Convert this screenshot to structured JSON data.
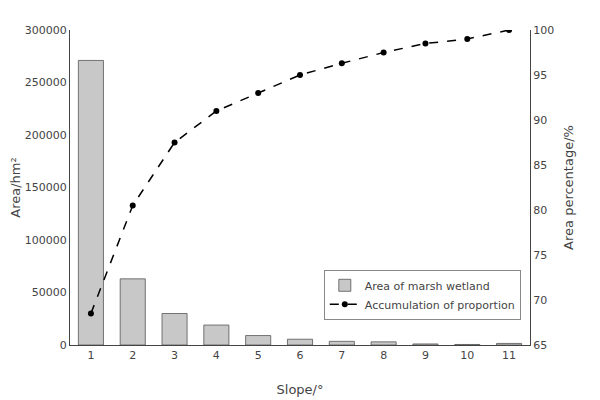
{
  "chart_data": {
    "type": "bar",
    "x": [
      1,
      2,
      3,
      4,
      5,
      6,
      7,
      8,
      9,
      10,
      11
    ],
    "series": [
      {
        "name": "Area of marsh wetland",
        "type": "bar",
        "color": "#c8c8c8",
        "values": [
          271000,
          63000,
          30000,
          19000,
          9000,
          5500,
          3500,
          3000,
          1000,
          500,
          1500
        ]
      },
      {
        "name": "Accumulation of proportion",
        "type": "line",
        "axis": "y2",
        "color": "#000000",
        "line_style": "dashed",
        "marker": "circle",
        "values": [
          68.5,
          80.5,
          87.5,
          91.0,
          93.0,
          95.0,
          96.3,
          97.5,
          98.5,
          99.0,
          100.0
        ]
      }
    ],
    "xlabel": "Slope/°",
    "ylabel": "Area/hm²",
    "y2label": "Area percentage/%",
    "xlim": [
      0.5,
      11.5
    ],
    "xticks": [
      1,
      2,
      3,
      4,
      5,
      6,
      7,
      8,
      9,
      10,
      11
    ],
    "ylim": [
      0,
      300000
    ],
    "yticks": [
      0,
      50000,
      100000,
      150000,
      200000,
      250000,
      300000
    ],
    "y2lim": [
      65,
      100
    ],
    "y2ticks": [
      65,
      70,
      75,
      80,
      85,
      90,
      95,
      100
    ],
    "grid": false,
    "legend": "lower right"
  }
}
